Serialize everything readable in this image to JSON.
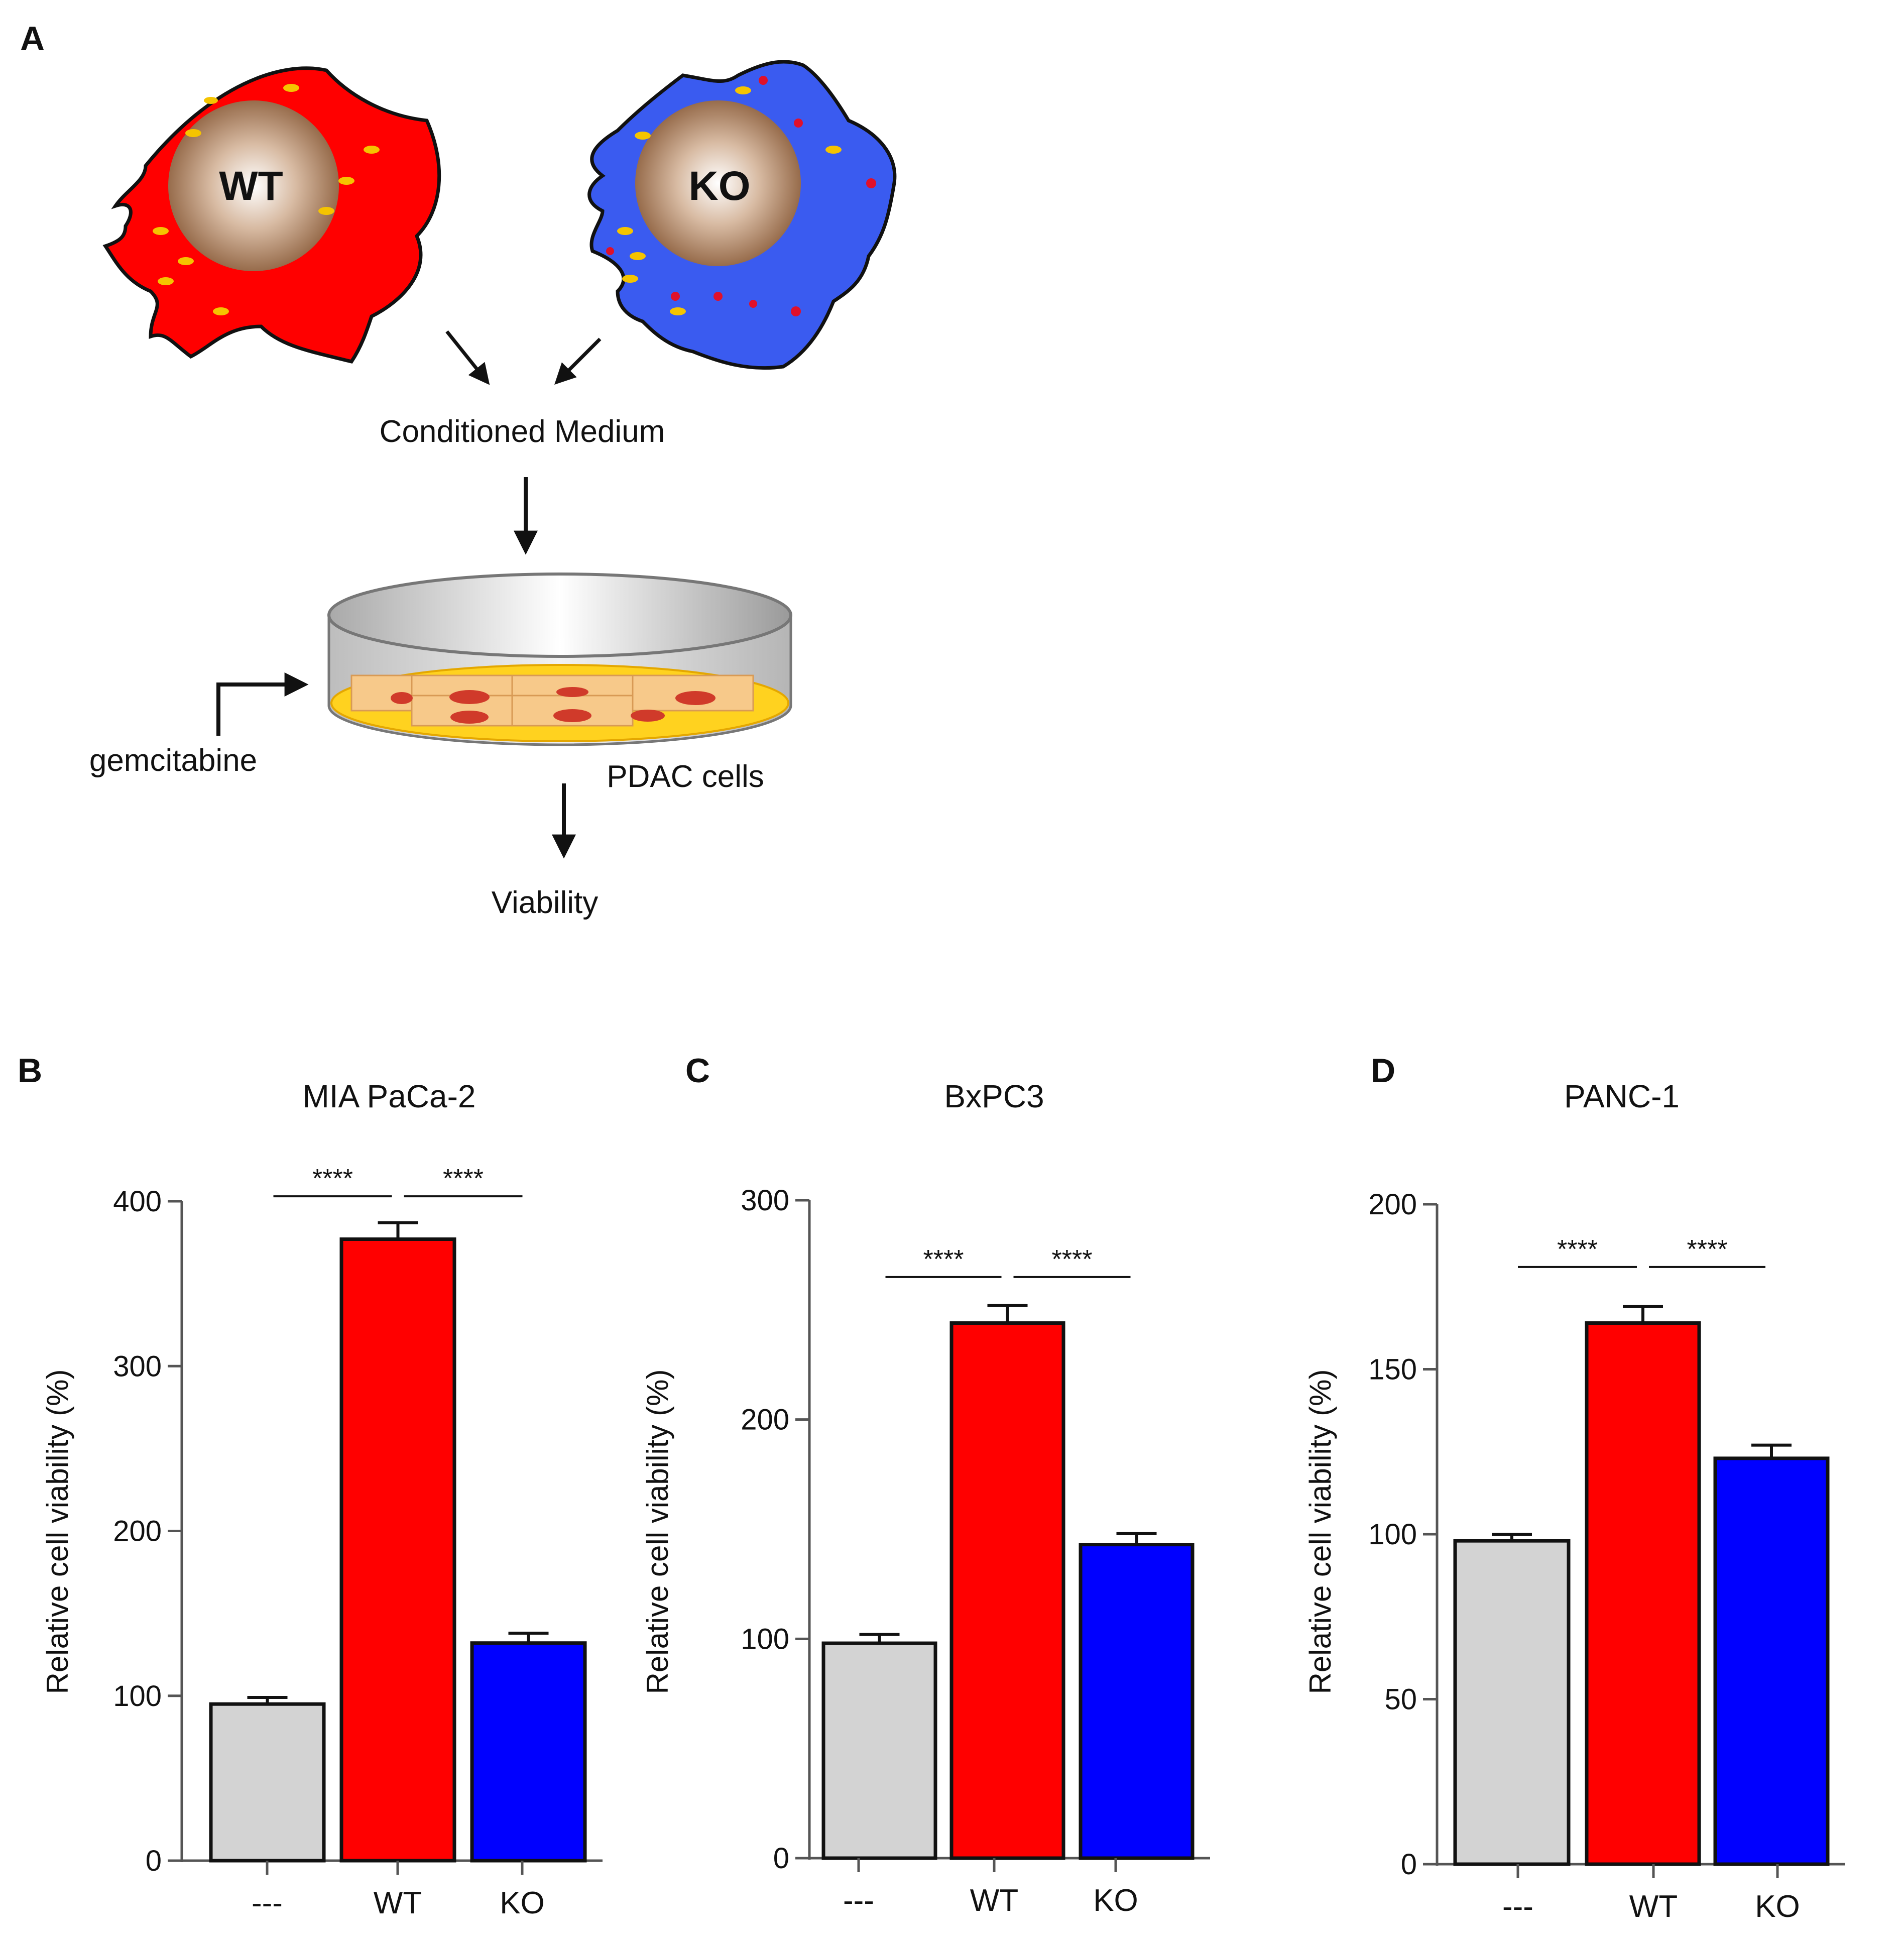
{
  "panel_labels": {
    "a": "A",
    "b": "B",
    "c": "C",
    "d": "D"
  },
  "schematic": {
    "cell_wt_label": "WT",
    "cell_ko_label": "KO",
    "conditioned_medium": "Conditioned Medium",
    "gemcitabine": "gemcitabine",
    "pdac_cells": "PDAC cells",
    "viability": "Viability"
  },
  "colors": {
    "control": "#d3d3d3",
    "wt": "#ff0000",
    "ko": "#0000ff",
    "wt_cell": "#ff0000",
    "ko_cell": "#3a5bf0"
  },
  "chart_data": [
    {
      "type": "bar",
      "title": "MIA PaCa-2",
      "ylabel": "Relative  cell viability  (%)",
      "categories": [
        "---",
        "WT",
        "KO"
      ],
      "values": [
        95,
        377,
        132
      ],
      "errors": [
        4,
        10,
        6
      ],
      "ylim": [
        0,
        400
      ],
      "yticks": [
        0,
        100,
        200,
        300,
        400
      ],
      "significance": [
        {
          "from": "---",
          "to": "WT",
          "label": "****"
        },
        {
          "from": "WT",
          "to": "KO",
          "label": "****"
        }
      ],
      "sig_level": 403
    },
    {
      "type": "bar",
      "title": "BxPC3",
      "ylabel": "Relative  cell viability  (%)",
      "categories": [
        "---",
        "WT",
        "KO"
      ],
      "values": [
        98,
        244,
        143
      ],
      "errors": [
        4,
        8,
        5
      ],
      "ylim": [
        0,
        300
      ],
      "yticks": [
        0,
        100,
        200,
        300
      ],
      "significance": [
        {
          "from": "---",
          "to": "WT",
          "label": "****"
        },
        {
          "from": "WT",
          "to": "KO",
          "label": "****"
        }
      ],
      "sig_level": 265
    },
    {
      "type": "bar",
      "title": "PANC-1",
      "ylabel": "Relative  cell viability  (%)",
      "categories": [
        "---",
        "WT",
        "KO"
      ],
      "values": [
        98,
        164,
        123
      ],
      "errors": [
        2,
        5,
        4
      ],
      "ylim": [
        0,
        200
      ],
      "yticks": [
        0,
        50,
        100,
        150,
        200
      ],
      "significance": [
        {
          "from": "---",
          "to": "WT",
          "label": "****"
        },
        {
          "from": "WT",
          "to": "KO",
          "label": "****"
        }
      ],
      "sig_level": 181
    }
  ]
}
